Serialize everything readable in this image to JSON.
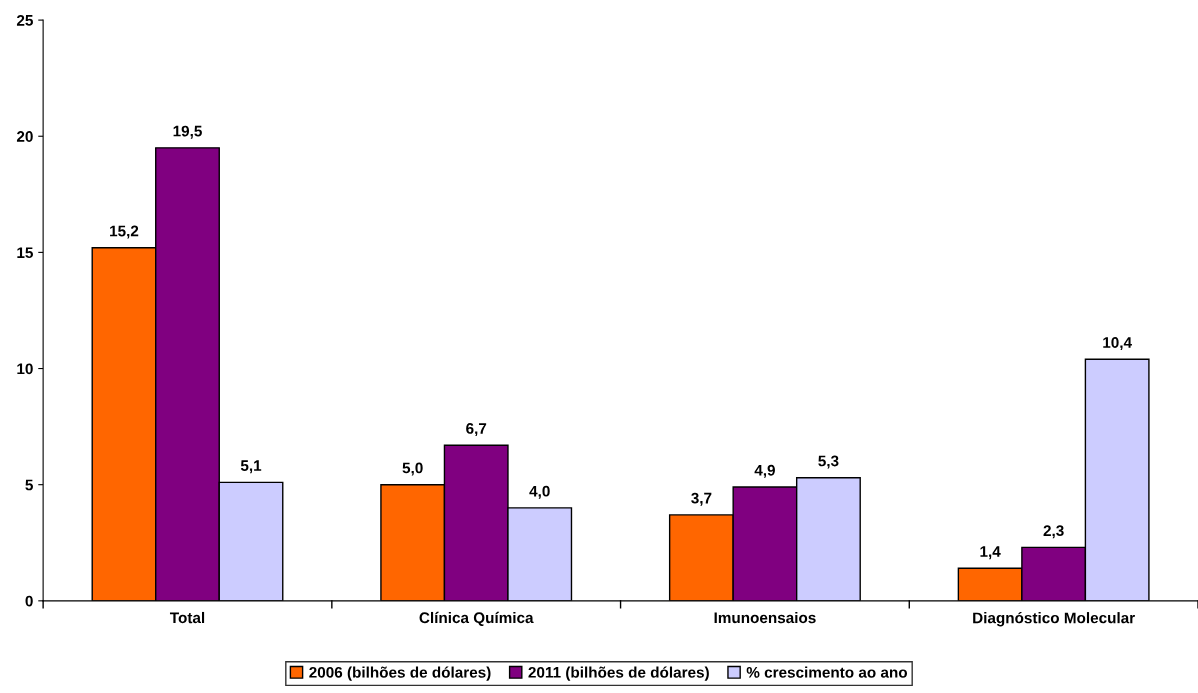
{
  "chart_data": {
    "type": "bar",
    "categories": [
      "Total",
      "Clínica Química",
      "Imunoensaios",
      "Diagnóstico Molecular"
    ],
    "series": [
      {
        "name": "2006 (bilhões de dólares)",
        "color": "#ff6600",
        "values": [
          15.2,
          5.0,
          3.7,
          1.4
        ],
        "value_labels": [
          "15,2",
          "5,0",
          "3,7",
          "1,4"
        ]
      },
      {
        "name": "2011 (bilhões de dólares)",
        "color": "#800080",
        "values": [
          19.5,
          6.7,
          4.9,
          2.3
        ],
        "value_labels": [
          "19,5",
          "6,7",
          "4,9",
          "2,3"
        ]
      },
      {
        "name": "% crescimento ao ano",
        "color": "#ccccff",
        "values": [
          5.1,
          4.0,
          5.3,
          10.4
        ],
        "value_labels": [
          "5,1",
          "4,0",
          "5,3",
          "10,4"
        ]
      }
    ],
    "ylim": [
      0,
      25
    ],
    "yticks": [
      0,
      5,
      10,
      15,
      20,
      25
    ],
    "grid": false,
    "legend": "bottom"
  }
}
